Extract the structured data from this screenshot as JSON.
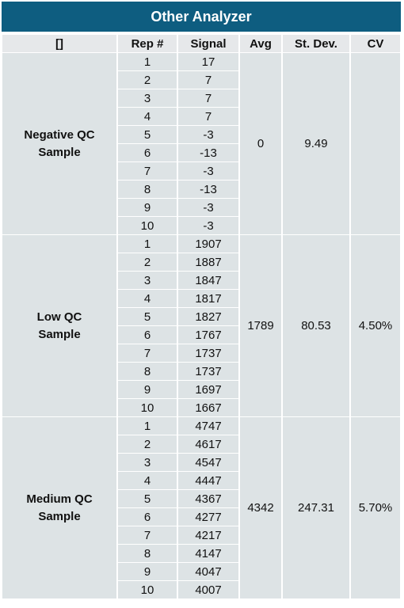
{
  "title": "Other Analyzer",
  "table": {
    "header": [
      "[]",
      "Rep #",
      "Signal",
      "Avg",
      "St. Dev.",
      "CV"
    ],
    "groups": [
      {
        "sample": "Negative QC Sample",
        "rows": [
          [
            1,
            17
          ],
          [
            2,
            7
          ],
          [
            3,
            7
          ],
          [
            4,
            7
          ],
          [
            5,
            -3
          ],
          [
            6,
            -13
          ],
          [
            7,
            -3
          ],
          [
            8,
            -13
          ],
          [
            9,
            -3
          ],
          [
            10,
            -3
          ]
        ],
        "avg": 0,
        "st_dev": 9.49
      },
      {
        "sample": "Low QC Sample",
        "rows": [
          [
            1,
            1907
          ],
          [
            2,
            1887
          ],
          [
            3,
            1847
          ],
          [
            4,
            1817
          ],
          [
            5,
            1827
          ],
          [
            6,
            1767
          ],
          [
            7,
            1737
          ],
          [
            8,
            1737
          ],
          [
            9,
            1697
          ],
          [
            10,
            1667
          ]
        ],
        "avg": 1789,
        "st_dev": 80.53,
        "cv": "4.50%"
      },
      {
        "sample": "Medium QC Sample",
        "rows": [
          [
            1,
            4747
          ],
          [
            2,
            4617
          ],
          [
            3,
            4547
          ],
          [
            4,
            4447
          ],
          [
            5,
            4367
          ],
          [
            6,
            4277
          ],
          [
            7,
            4217
          ],
          [
            8,
            4147
          ],
          [
            9,
            4047
          ],
          [
            10,
            4007
          ]
        ],
        "avg": 4342,
        "st_dev": 247.31,
        "cv": "5.70%"
      }
    ]
  }
}
